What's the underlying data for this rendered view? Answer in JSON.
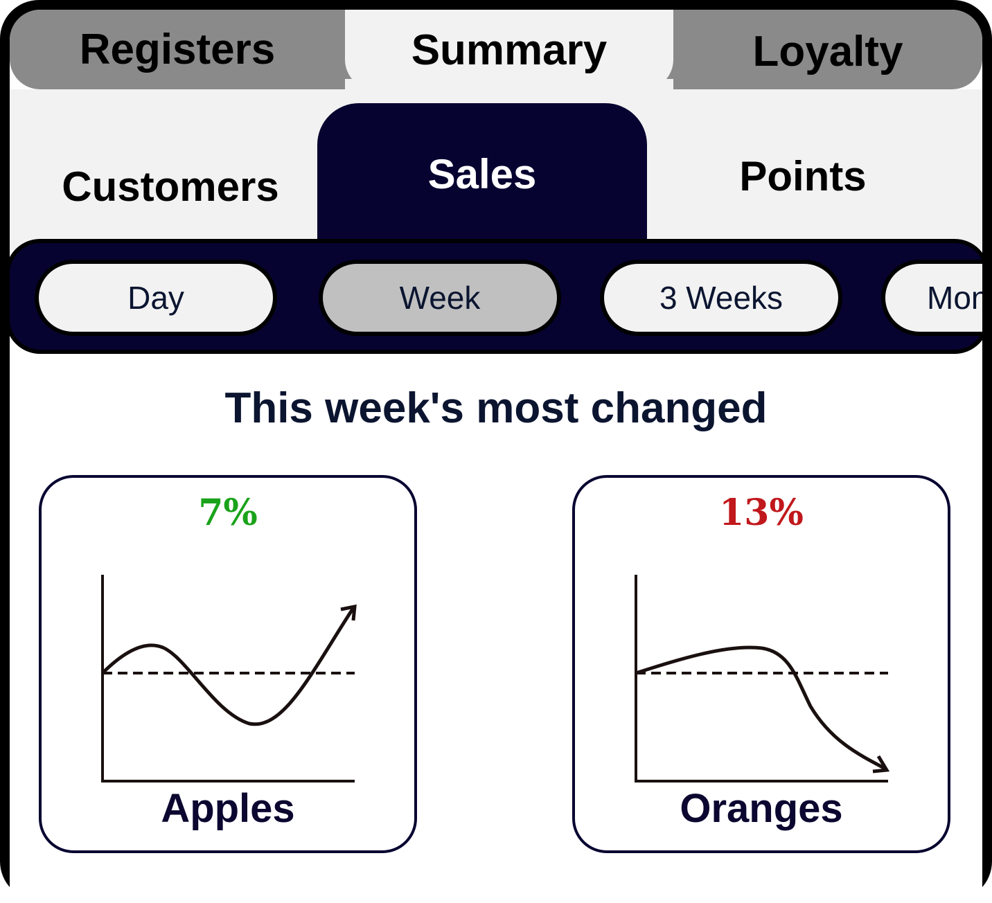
{
  "top_tabs": [
    {
      "label": "Registers"
    },
    {
      "label": "Summary",
      "active": true
    },
    {
      "label": "Loyalty"
    }
  ],
  "sub_tabs": [
    {
      "label": "Customers"
    },
    {
      "label": "Sales",
      "active": true
    },
    {
      "label": "Points"
    }
  ],
  "ranges": [
    {
      "label": "Day"
    },
    {
      "label": "Week",
      "active": true
    },
    {
      "label": "3 Weeks"
    },
    {
      "label": "Month"
    }
  ],
  "headline": "This week's most changed",
  "cards": [
    {
      "name": "Apples",
      "change": "7%",
      "trend": "up",
      "color": "#1aa31a",
      "trend_icon": "rising-trend-icon"
    },
    {
      "name": "Oranges",
      "change": "13%",
      "trend": "down",
      "color": "#c0181c",
      "trend_icon": "falling-trend-icon"
    }
  ],
  "colors": {
    "navy": "#060330",
    "tab_gray": "#8a8a8a",
    "panel": "#f2f2f2",
    "selected_pill": "#c0c0c0"
  }
}
